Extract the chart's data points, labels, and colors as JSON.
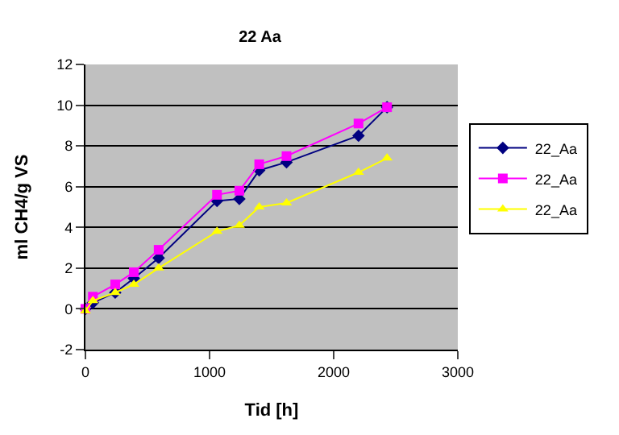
{
  "chart_data": {
    "type": "line",
    "title": "22 Aa",
    "xlabel": "Tid [h]",
    "ylabel": "ml CH4/g VS",
    "x": [
      0,
      60,
      240,
      390,
      590,
      1060,
      1240,
      1400,
      1620,
      2200,
      2430
    ],
    "series": [
      {
        "name": "22_Aa",
        "color": "#000080",
        "marker": "diamond",
        "values": [
          0,
          0.3,
          0.8,
          1.5,
          2.5,
          5.3,
          5.4,
          6.8,
          7.2,
          8.5,
          9.9
        ]
      },
      {
        "name": "22_Aa",
        "color": "#ff00ff",
        "marker": "square",
        "values": [
          0,
          0.6,
          1.2,
          1.8,
          2.9,
          5.6,
          5.8,
          7.1,
          7.5,
          9.1,
          9.9
        ]
      },
      {
        "name": "22_Aa",
        "color": "#ffff00",
        "marker": "triangle",
        "values": [
          -0.1,
          0.4,
          0.8,
          1.2,
          2.0,
          3.8,
          4.1,
          5.0,
          5.2,
          6.7,
          7.4
        ]
      }
    ],
    "xlim": [
      0,
      3000
    ],
    "xticks": [
      0,
      1000,
      2000,
      3000
    ],
    "ylim": [
      -2,
      12
    ],
    "yticks": [
      -2,
      0,
      2,
      4,
      6,
      8,
      10,
      12
    ],
    "grid": "y",
    "legend": "right"
  }
}
